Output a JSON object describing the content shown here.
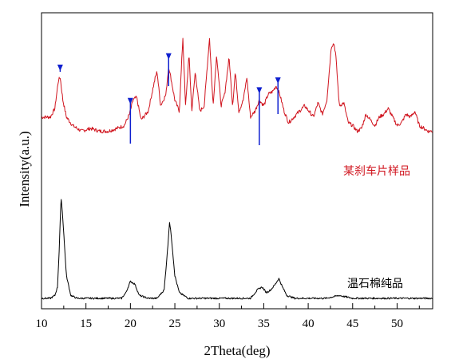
{
  "chart_data": {
    "type": "line",
    "title": "",
    "xlabel": "2Theta(deg)",
    "ylabel": "Intensity(a.u.)",
    "xlim": [
      10,
      54
    ],
    "ylim": [
      0,
      100
    ],
    "y_ticks_shown": false,
    "grid": false,
    "x_ticks": [
      10,
      15,
      20,
      25,
      30,
      35,
      40,
      45,
      50
    ],
    "x_tick_labels": [
      "10",
      "15",
      "20",
      "25",
      "30",
      "35",
      "40",
      "45",
      "50"
    ],
    "series": [
      {
        "name": "某刹车片样品",
        "color": "#d0141e",
        "x": [
          10,
          11,
          11.5,
          11.9,
          12.1,
          12.4,
          12.8,
          13.5,
          14.5,
          15.5,
          16.5,
          17.5,
          18.5,
          19.3,
          19.9,
          20.3,
          20.7,
          21.2,
          22.0,
          22.8,
          23.0,
          23.4,
          24.0,
          24.3,
          24.6,
          25.0,
          25.5,
          25.9,
          26.2,
          26.6,
          26.9,
          27.3,
          27.8,
          28.3,
          28.9,
          29.3,
          29.7,
          30.2,
          30.6,
          31.1,
          31.5,
          31.8,
          32.2,
          32.7,
          33.1,
          33.5,
          34.0,
          34.5,
          35.0,
          35.5,
          36.0,
          36.4,
          36.8,
          37.3,
          37.8,
          38.4,
          39.0,
          39.6,
          40.1,
          40.6,
          41.1,
          41.6,
          42.1,
          42.6,
          42.9,
          43.1,
          43.5,
          44.0,
          44.5,
          45.0,
          45.5,
          46.0,
          46.5,
          47.0,
          47.5,
          48.0,
          48.5,
          49.0,
          49.5,
          50.0,
          50.5,
          51.0,
          51.5,
          52.0,
          52.5,
          53.0,
          53.5,
          54.0
        ],
        "values": [
          66,
          66,
          69,
          79,
          80,
          72,
          66,
          63,
          61,
          62,
          61,
          61,
          62,
          63,
          67,
          72,
          73,
          65,
          68,
          80,
          82,
          70,
          74,
          84,
          79,
          72,
          68,
          94,
          70,
          88,
          68,
          82,
          68,
          70,
          94,
          70,
          88,
          70,
          74,
          87,
          70,
          82,
          68,
          72,
          80,
          66,
          68,
          72,
          70,
          74,
          75,
          77,
          74,
          68,
          64,
          66,
          68,
          70,
          68,
          66,
          71,
          67,
          72,
          91,
          92,
          88,
          70,
          71,
          64,
          63,
          61,
          62,
          67,
          65,
          63,
          66,
          67,
          69,
          66,
          63,
          64,
          67,
          66,
          68,
          63,
          62,
          61,
          61
        ]
      },
      {
        "name": "温石棉纯品",
        "color": "#000000",
        "x": [
          10,
          11,
          11.5,
          11.8,
          12.0,
          12.2,
          12.4,
          12.8,
          13.3,
          14,
          15,
          16,
          17,
          18,
          19,
          19.5,
          20.0,
          20.5,
          21.0,
          22,
          23,
          23.8,
          24.2,
          24.4,
          24.6,
          25.0,
          25.5,
          26.5,
          28,
          30,
          32,
          33.5,
          34.3,
          34.8,
          35.3,
          35.8,
          36.3,
          36.7,
          37.1,
          37.6,
          38.5,
          40,
          42,
          43.5,
          45,
          47,
          49,
          51,
          53,
          54
        ],
        "values": [
          2,
          2,
          3,
          6,
          20,
          38,
          30,
          10,
          3,
          2,
          2,
          2,
          2,
          2,
          2,
          4,
          8,
          7,
          3,
          2,
          2,
          5,
          20,
          29,
          24,
          10,
          4,
          2,
          2,
          2,
          2,
          2,
          5,
          6,
          4,
          5,
          7,
          9,
          6,
          3,
          2,
          2,
          2,
          3,
          2,
          2,
          2,
          2,
          2,
          2
        ]
      }
    ],
    "annotations": {
      "arrow_color": "#0e1fcf",
      "arrow_positions_deg": [
        12.1,
        20.0,
        24.3,
        34.5,
        36.6
      ]
    }
  }
}
